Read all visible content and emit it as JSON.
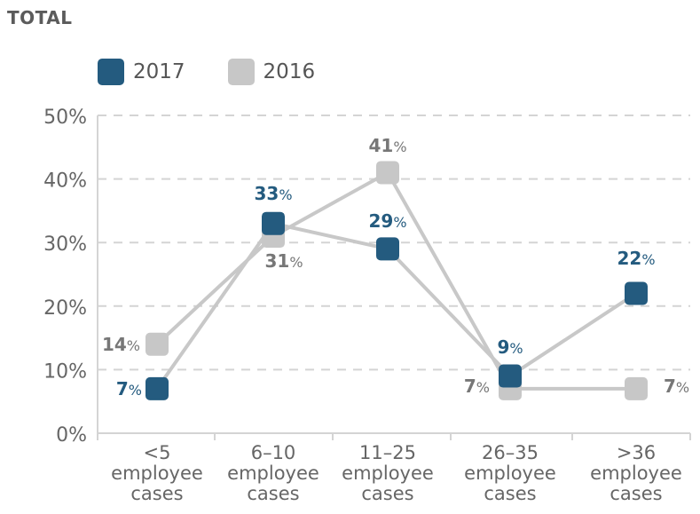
{
  "title": "TOTAL",
  "colors": {
    "series_2017": "#245b7f",
    "series_2016": "#c7c7c7",
    "line": "#c8c8c8",
    "grid": "#d4d4d4",
    "axis_text": "#666666"
  },
  "chart_data": {
    "type": "line",
    "categories": [
      "<5 employee cases",
      "6–10 employee cases",
      "11–25 employee cases",
      "26–35 employee cases",
      ">36 employee cases"
    ],
    "category_lines": [
      [
        "<5",
        "employee",
        "cases"
      ],
      [
        "6–10",
        "employee",
        "cases"
      ],
      [
        "11–25",
        "employee",
        "cases"
      ],
      [
        "26–35",
        "employee",
        "cases"
      ],
      [
        ">36",
        "employee",
        "cases"
      ]
    ],
    "series": [
      {
        "name": "2017",
        "values": [
          7,
          33,
          29,
          9,
          22
        ],
        "labels": [
          "7%",
          "33%",
          "29%",
          "9%",
          "22%"
        ]
      },
      {
        "name": "2016",
        "values": [
          14,
          31,
          41,
          7,
          7
        ],
        "labels": [
          "14%",
          "31%",
          "41%",
          "7%",
          "7%"
        ]
      }
    ],
    "y_ticks": [
      "0%",
      "10%",
      "20%",
      "30%",
      "40%",
      "50%"
    ],
    "ylim": [
      0,
      50
    ],
    "grid": true,
    "legend_position": "top-left"
  }
}
